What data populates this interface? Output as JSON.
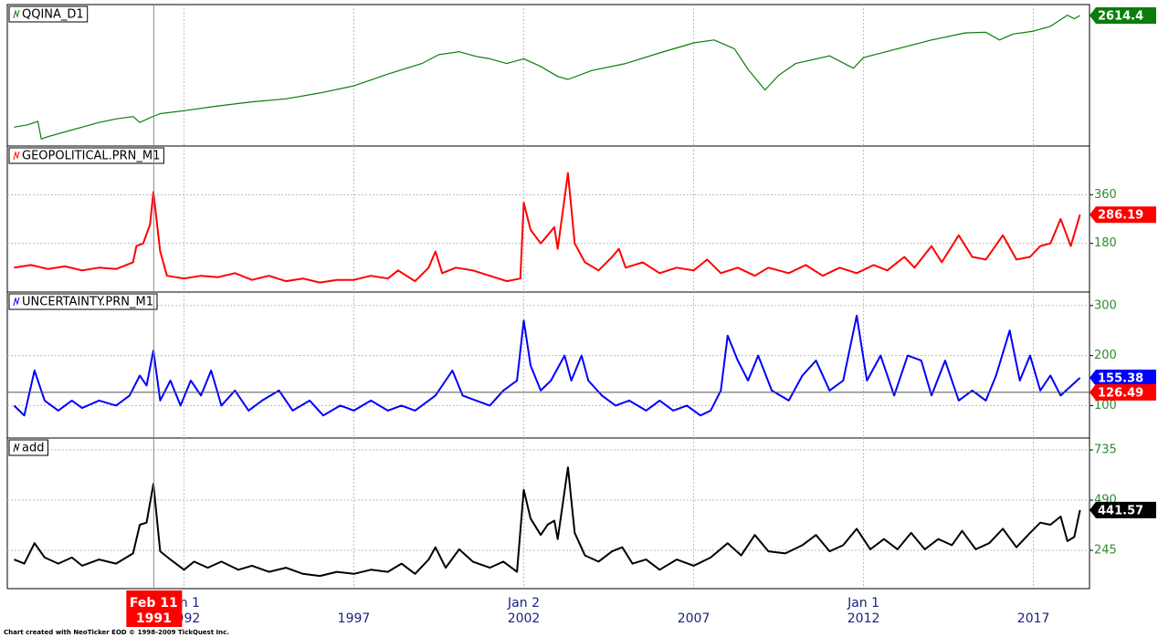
{
  "chart_data": [
    {
      "type": "line",
      "title": "QQINA_D1",
      "color": "#0a7d0a",
      "tag_color": "#0a7d0a",
      "ylim": [
        400,
        2800
      ],
      "xlim": [
        1986.8,
        2018.65
      ],
      "x": [
        1987.0,
        1987.4,
        1987.7,
        1987.8,
        1988.0,
        1988.5,
        1989.0,
        1989.5,
        1990.0,
        1990.5,
        1990.7,
        1991.0,
        1991.3,
        1992.0,
        1993.0,
        1994.0,
        1995.0,
        1996.0,
        1997.0,
        1998.0,
        1999.0,
        1999.5,
        2000.1,
        2000.6,
        2001.0,
        2001.5,
        2002.0,
        2002.5,
        2003.0,
        2003.3,
        2004.0,
        2005.0,
        2006.0,
        2007.0,
        2007.6,
        2008.2,
        2008.6,
        2009.1,
        2009.5,
        2010.0,
        2011.0,
        2011.7,
        2012.0,
        2013.0,
        2014.0,
        2015.0,
        2015.6,
        2016.0,
        2016.4,
        2017.0,
        2017.5,
        2018.0,
        2018.2,
        2018.37
      ],
      "values": [
        720,
        760,
        820,
        520,
        560,
        640,
        720,
        800,
        860,
        900,
        800,
        880,
        950,
        1000,
        1080,
        1150,
        1200,
        1300,
        1420,
        1620,
        1800,
        1950,
        2000,
        1920,
        1880,
        1800,
        1880,
        1750,
        1580,
        1530,
        1680,
        1800,
        1980,
        2150,
        2200,
        2050,
        1700,
        1350,
        1600,
        1800,
        1930,
        1720,
        1900,
        2050,
        2200,
        2320,
        2330,
        2200,
        2300,
        2350,
        2430,
        2620,
        2560,
        2614.4
      ]
    },
    {
      "type": "line",
      "title": "GEOPOLITICAL.PRN_M1",
      "color": "#ff0000",
      "tag_color": "#ff0000",
      "ylim": [
        0,
        540
      ],
      "yticks": [
        180,
        360
      ],
      "xlim": [
        1986.8,
        2018.65
      ],
      "x": [
        1987.0,
        1987.5,
        1988.0,
        1988.5,
        1989.0,
        1989.5,
        1990.0,
        1990.5,
        1990.6,
        1990.8,
        1991.0,
        1991.1,
        1991.3,
        1991.5,
        1992.0,
        1992.5,
        1993.0,
        1993.5,
        1994.0,
        1994.5,
        1995.0,
        1995.5,
        1996.0,
        1996.5,
        1997.0,
        1997.5,
        1998.0,
        1998.3,
        1998.8,
        1999.2,
        1999.4,
        1999.6,
        2000.0,
        2000.5,
        2001.0,
        2001.5,
        2001.9,
        2002.0,
        2002.2,
        2002.5,
        2002.7,
        2002.9,
        2003.0,
        2003.3,
        2003.5,
        2003.8,
        2004.2,
        2004.6,
        2004.8,
        2005.0,
        2005.5,
        2006.0,
        2006.5,
        2007.0,
        2007.4,
        2007.8,
        2008.3,
        2008.8,
        2009.2,
        2009.8,
        2010.3,
        2010.8,
        2011.3,
        2011.8,
        2012.3,
        2012.7,
        2013.2,
        2013.5,
        2014.0,
        2014.3,
        2014.8,
        2015.2,
        2015.6,
        2016.1,
        2016.5,
        2016.9,
        2017.2,
        2017.5,
        2017.8,
        2018.1,
        2018.37
      ],
      "values": [
        90,
        100,
        85,
        95,
        80,
        90,
        85,
        110,
        170,
        180,
        250,
        370,
        150,
        60,
        50,
        60,
        55,
        70,
        45,
        60,
        40,
        50,
        35,
        45,
        45,
        60,
        50,
        80,
        40,
        90,
        150,
        70,
        90,
        80,
        60,
        40,
        50,
        330,
        230,
        180,
        210,
        240,
        160,
        440,
        180,
        110,
        80,
        130,
        160,
        90,
        110,
        70,
        90,
        80,
        120,
        70,
        90,
        60,
        90,
        70,
        100,
        60,
        90,
        70,
        100,
        80,
        130,
        90,
        170,
        110,
        210,
        130,
        120,
        210,
        120,
        130,
        170,
        180,
        270,
        170,
        286.19
      ]
    },
    {
      "type": "line",
      "title": "UNCERTAINTY.PRN_M1",
      "color": "#0000ff",
      "tag_color": "#0000ff",
      "ylim": [
        35,
        327
      ],
      "yticks": [
        100,
        200,
        300
      ],
      "xlim": [
        1986.8,
        2018.65
      ],
      "crosshair_y": 126.49,
      "crosshair_color": "#ff0000",
      "x": [
        1987.0,
        1987.3,
        1987.6,
        1987.9,
        1988.3,
        1988.7,
        1989.0,
        1989.5,
        1990.0,
        1990.4,
        1990.7,
        1990.9,
        1991.1,
        1991.3,
        1991.6,
        1991.9,
        1992.2,
        1992.5,
        1992.8,
        1993.1,
        1993.5,
        1993.9,
        1994.3,
        1994.8,
        1995.2,
        1995.7,
        1996.1,
        1996.6,
        1997.0,
        1997.5,
        1998.0,
        1998.4,
        1998.8,
        1999.4,
        1999.9,
        2000.2,
        2000.6,
        2001.0,
        2001.4,
        2001.8,
        2002.0,
        2002.2,
        2002.5,
        2002.8,
        2003.2,
        2003.4,
        2003.7,
        2003.9,
        2004.3,
        2004.7,
        2005.1,
        2005.6,
        2006.0,
        2006.4,
        2006.8,
        2007.2,
        2007.5,
        2007.8,
        2008.0,
        2008.3,
        2008.6,
        2008.9,
        2009.3,
        2009.8,
        2010.2,
        2010.6,
        2011.0,
        2011.4,
        2011.8,
        2012.1,
        2012.5,
        2012.9,
        2013.3,
        2013.7,
        2014.0,
        2014.4,
        2014.8,
        2015.2,
        2015.6,
        2015.9,
        2016.3,
        2016.6,
        2016.9,
        2017.2,
        2017.5,
        2017.8,
        2018.37
      ],
      "values": [
        100,
        80,
        170,
        110,
        90,
        110,
        95,
        110,
        100,
        120,
        160,
        140,
        210,
        110,
        150,
        100,
        150,
        120,
        170,
        100,
        130,
        90,
        110,
        130,
        90,
        110,
        80,
        100,
        90,
        110,
        90,
        100,
        90,
        120,
        170,
        120,
        110,
        100,
        130,
        150,
        270,
        180,
        130,
        150,
        200,
        150,
        200,
        150,
        120,
        100,
        110,
        90,
        110,
        90,
        100,
        80,
        90,
        130,
        240,
        190,
        150,
        200,
        130,
        110,
        160,
        190,
        130,
        150,
        280,
        150,
        200,
        120,
        200,
        190,
        120,
        190,
        110,
        130,
        110,
        160,
        250,
        150,
        200,
        130,
        160,
        120,
        155.38
      ]
    },
    {
      "type": "line",
      "title": "add",
      "color": "#000000",
      "tag_color": "#000000",
      "ylim": [
        58,
        793
      ],
      "yticks": [
        245,
        490,
        735
      ],
      "xlim": [
        1986.8,
        2018.65
      ],
      "xticks": [
        {
          "value": 1992,
          "label": "1992",
          "date": "Jan 1"
        },
        1997,
        {
          "value": 2002,
          "label": "2002",
          "date": "Jan 2"
        },
        2007,
        {
          "value": 2012,
          "label": "2012",
          "date": "Jan 1"
        },
        2017
      ],
      "x": [
        1987.0,
        1987.3,
        1987.6,
        1987.9,
        1988.3,
        1988.7,
        1989.0,
        1989.5,
        1990.0,
        1990.5,
        1990.7,
        1990.9,
        1991.1,
        1991.3,
        1991.6,
        1992.0,
        1992.3,
        1992.7,
        1993.1,
        1993.6,
        1994.0,
        1994.5,
        1995.0,
        1995.5,
        1996.0,
        1996.5,
        1997.0,
        1997.5,
        1998.0,
        1998.4,
        1998.8,
        1999.2,
        1999.4,
        1999.7,
        2000.1,
        2000.5,
        2001.0,
        2001.4,
        2001.8,
        2002.0,
        2002.2,
        2002.5,
        2002.7,
        2002.9,
        2003.0,
        2003.3,
        2003.5,
        2003.8,
        2004.2,
        2004.6,
        2004.9,
        2005.2,
        2005.6,
        2006.0,
        2006.5,
        2007.0,
        2007.5,
        2008.0,
        2008.4,
        2008.8,
        2009.2,
        2009.7,
        2010.2,
        2010.6,
        2011.0,
        2011.4,
        2011.8,
        2012.2,
        2012.6,
        2013.0,
        2013.4,
        2013.8,
        2014.2,
        2014.6,
        2014.9,
        2015.3,
        2015.7,
        2016.1,
        2016.5,
        2016.9,
        2017.2,
        2017.5,
        2017.8,
        2018.0,
        2018.2,
        2018.37
      ],
      "values": [
        200,
        180,
        280,
        210,
        180,
        210,
        170,
        200,
        180,
        230,
        370,
        380,
        570,
        240,
        200,
        150,
        190,
        160,
        190,
        150,
        170,
        140,
        160,
        130,
        120,
        140,
        130,
        150,
        140,
        180,
        130,
        200,
        260,
        160,
        250,
        190,
        160,
        190,
        140,
        540,
        400,
        320,
        370,
        390,
        300,
        650,
        330,
        220,
        190,
        240,
        260,
        180,
        200,
        150,
        200,
        170,
        210,
        280,
        220,
        320,
        240,
        230,
        270,
        320,
        240,
        270,
        350,
        250,
        300,
        250,
        330,
        250,
        300,
        270,
        340,
        250,
        280,
        350,
        260,
        330,
        380,
        370,
        410,
        290,
        310,
        441.57
      ]
    }
  ],
  "crosshair": {
    "x": 1991.11,
    "date": "Feb 11",
    "year": "1991"
  },
  "footer": "Chart created with NeoTicker EOD © 1998-2009 TickQuest Inc."
}
